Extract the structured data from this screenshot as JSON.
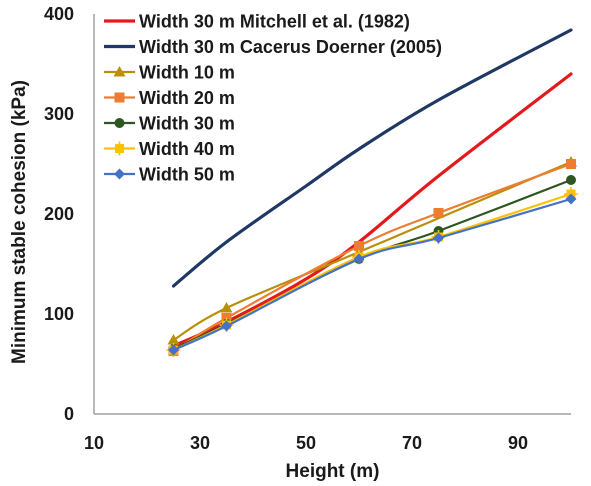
{
  "chart_data": {
    "type": "line",
    "title": "",
    "xlabel": "Height (m)",
    "ylabel": "Minimum stable cohesion (kPa)",
    "xlim": [
      10,
      100
    ],
    "ylim": [
      0,
      400
    ],
    "x_ticks": [
      "10",
      "30",
      "50",
      "70",
      "90"
    ],
    "y_ticks": [
      "0",
      "100",
      "200",
      "300",
      "400"
    ],
    "grid": false,
    "legend_position": "top-left",
    "series": [
      {
        "name": "Width 30 m Mitchell et al. (1982)",
        "color": "#e31a1c",
        "marker": "none",
        "points": [
          [
            25,
            68
          ],
          [
            35,
            92
          ],
          [
            50,
            135
          ],
          [
            60,
            172
          ],
          [
            75,
            238
          ],
          [
            100,
            340
          ]
        ]
      },
      {
        "name": "Width 30 m Cacerus Doerner (2005)",
        "color": "#1f3864",
        "marker": "none",
        "points": [
          [
            25,
            128
          ],
          [
            35,
            172
          ],
          [
            50,
            228
          ],
          [
            60,
            265
          ],
          [
            75,
            314
          ],
          [
            100,
            384
          ]
        ]
      },
      {
        "name": "Width 10 m",
        "color": "#b8900a",
        "marker": "triangle",
        "points": [
          [
            25,
            74
          ],
          [
            35,
            106
          ],
          [
            60,
            162
          ],
          [
            100,
            252
          ]
        ]
      },
      {
        "name": "Width 20 m",
        "color": "#ed7d31",
        "marker": "square",
        "points": [
          [
            25,
            63
          ],
          [
            35,
            96
          ],
          [
            60,
            168
          ],
          [
            75,
            201
          ],
          [
            100,
            250
          ]
        ]
      },
      {
        "name": "Width 30 m",
        "color": "#2e5620",
        "marker": "circle",
        "points": [
          [
            25,
            65
          ],
          [
            35,
            90
          ],
          [
            60,
            155
          ],
          [
            75,
            183
          ],
          [
            100,
            234
          ]
        ]
      },
      {
        "name": "Width 40 m",
        "color": "#ffc000",
        "marker": "plus-square",
        "points": [
          [
            25,
            64
          ],
          [
            35,
            89
          ],
          [
            60,
            157
          ],
          [
            75,
            177
          ],
          [
            100,
            220
          ]
        ]
      },
      {
        "name": "Width 50 m",
        "color": "#4472c4",
        "marker": "diamond",
        "points": [
          [
            25,
            64
          ],
          [
            35,
            88
          ],
          [
            60,
            155
          ],
          [
            75,
            176
          ],
          [
            100,
            215
          ]
        ]
      }
    ]
  }
}
